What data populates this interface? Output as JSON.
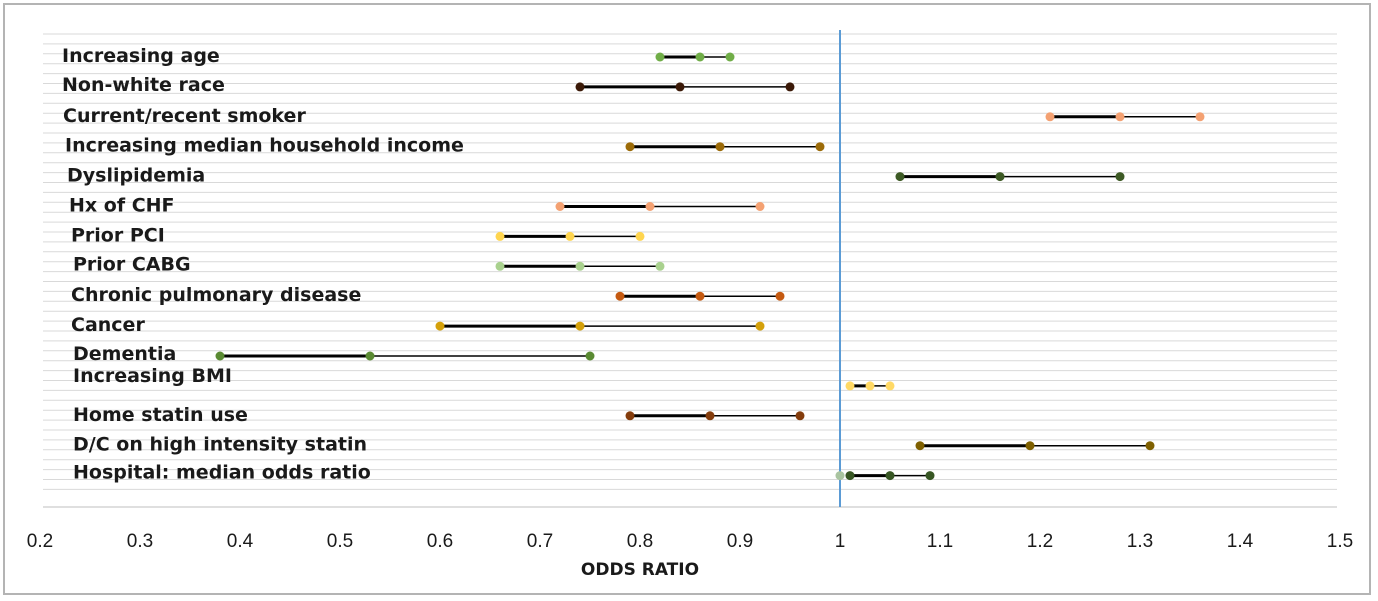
{
  "chart_data": {
    "type": "scatter",
    "subtype": "forest-plot",
    "title": "",
    "xlabel": "ODDS RATIO",
    "ylabel": "",
    "xlim": [
      0.2,
      1.5
    ],
    "xticks": [
      "0.2",
      "0.3",
      "0.4",
      "0.5",
      "0.6",
      "0.7",
      "0.8",
      "0.9",
      "1",
      "1.1",
      "1.2",
      "1.3",
      "1.4",
      "1.5"
    ],
    "reference_line": 1,
    "grid": "horizontal",
    "legend": "none",
    "rows": [
      {
        "label": "Increasing age",
        "lower": 0.82,
        "estimate": 0.86,
        "upper": 0.89,
        "color": "#70ad47"
      },
      {
        "label": "Non-white race",
        "lower": 0.74,
        "estimate": 0.84,
        "upper": 0.95,
        "color": "#3b1a08"
      },
      {
        "label": "Current/recent smoker",
        "lower": 1.21,
        "estimate": 1.28,
        "upper": 1.36,
        "color": "#f4a172"
      },
      {
        "label": "Increasing median household income",
        "lower": 0.79,
        "estimate": 0.88,
        "upper": 0.98,
        "color": "#9c6b08"
      },
      {
        "label": "Dyslipidemia",
        "lower": 1.06,
        "estimate": 1.16,
        "upper": 1.28,
        "color": "#3d5a24"
      },
      {
        "label": "Hx of CHF",
        "lower": 0.72,
        "estimate": 0.81,
        "upper": 0.92,
        "color": "#f4a172"
      },
      {
        "label": "Prior PCI",
        "lower": 0.66,
        "estimate": 0.73,
        "upper": 0.8,
        "color": "#ffd54f"
      },
      {
        "label": "Prior CABG",
        "lower": 0.66,
        "estimate": 0.74,
        "upper": 0.82,
        "color": "#a9d18e"
      },
      {
        "label": "Chronic pulmonary disease",
        "lower": 0.78,
        "estimate": 0.86,
        "upper": 0.94,
        "color": "#c55a11"
      },
      {
        "label": "Cancer",
        "lower": 0.6,
        "estimate": 0.74,
        "upper": 0.92,
        "color": "#d4a00a"
      },
      {
        "label": "Dementia",
        "lower": 0.38,
        "estimate": 0.53,
        "upper": 0.75,
        "color": "#5a8a32"
      },
      {
        "label": "Increasing BMI",
        "lower": 1.01,
        "estimate": 1.03,
        "upper": 1.05,
        "color": "#ffd966"
      },
      {
        "label": "Home statin use",
        "lower": 0.79,
        "estimate": 0.87,
        "upper": 0.96,
        "color": "#843c0c"
      },
      {
        "label": "D/C on high intensity statin",
        "lower": 1.08,
        "estimate": 1.19,
        "upper": 1.31,
        "color": "#7f6000"
      },
      {
        "label": "Hospital: median odds ratio",
        "lower": 1.01,
        "estimate": 1.05,
        "upper": 1.09,
        "color": "#375623",
        "extra_point": 1.0,
        "extra_color": "#a9c4a0"
      }
    ],
    "colors": {
      "reference_line": "#5b9bd5",
      "gridline": "#d9d9d9",
      "ci_line": "#000000",
      "frame": "#b4b4b4"
    }
  }
}
